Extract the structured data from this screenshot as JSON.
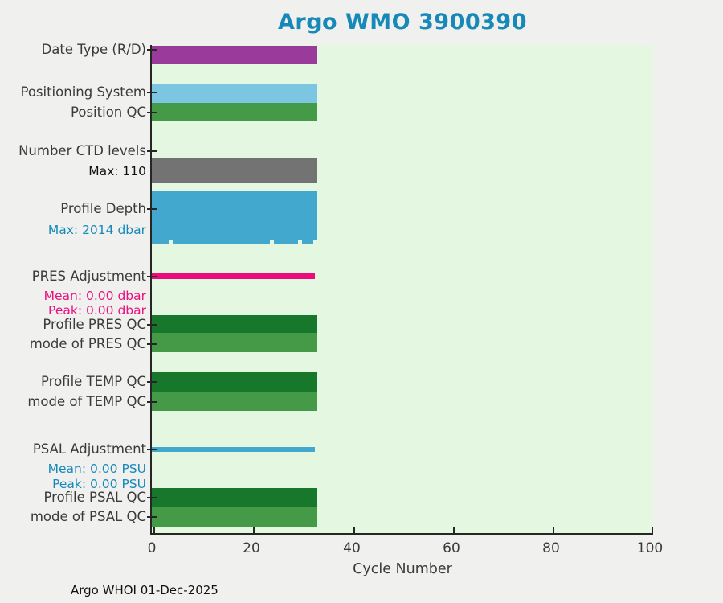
{
  "title": "Argo WMO 3900390",
  "footer": "Argo WHOI 01-Dec-2025",
  "colors": {
    "title_teal": "#1689b9",
    "page_bg": "#f0f0ee",
    "plot_bg": "#e4f8e1",
    "axis": "#262626",
    "label_text": "#3b3b3b",
    "blue_text": "#1689b9",
    "magenta_text": "#ea1280",
    "purple_bar": "#9a3a9a",
    "sky_bar": "#7dc6e2",
    "green_bar": "#459a48",
    "dark_green_bar": "#17772b",
    "gray_bar": "#737373",
    "steel_blue_bar": "#42a8ce",
    "magenta_bar": "#eb0b7a"
  },
  "xaxis": {
    "label": "Cycle Number",
    "ticks": [
      "0",
      "20",
      "40",
      "60",
      "80",
      "100"
    ]
  },
  "rows": [
    {
      "label": "Date Type (R/D)",
      "color": "#9a3a9a",
      "width_pct": 33
    },
    {
      "label": "Positioning System",
      "color": "#7dc6e2",
      "width_pct": 33
    },
    {
      "label": "Position QC",
      "color": "#459a48",
      "width_pct": 33
    },
    {
      "label": "Number CTD levels",
      "note": "Max: 110",
      "color": "#737373",
      "width_pct": 33
    },
    {
      "label": "Profile Depth",
      "note": "Max: 2014 dbar",
      "color": "#42a8ce",
      "width_pct": 33
    },
    {
      "label": "PRES Adjustment",
      "note": "Mean: 0.00 dbar",
      "note2": "Peak: 0.00 dbar",
      "color": "#eb0b7a",
      "width_pct": 32.5
    },
    {
      "label": "Profile PRES QC",
      "color": "#17772b",
      "width_pct": 33
    },
    {
      "label": "mode of PRES QC",
      "color": "#459a48",
      "width_pct": 33
    },
    {
      "label": "Profile TEMP QC",
      "color": "#17772b",
      "width_pct": 33
    },
    {
      "label": "mode of TEMP QC",
      "color": "#459a48",
      "width_pct": 33
    },
    {
      "label": "PSAL Adjustment",
      "note": "Mean: 0.00 PSU",
      "note2": "Peak: 0.00 PSU",
      "color": "#42a8ce",
      "width_pct": 32.5
    },
    {
      "label": "Profile PSAL QC",
      "color": "#17772b",
      "width_pct": 33
    },
    {
      "label": "mode of PSAL QC",
      "color": "#459a48",
      "width_pct": 33
    }
  ],
  "depth_notches_pct": [
    10,
    71.5,
    88.5,
    97.5
  ],
  "chart_data": {
    "type": "bar",
    "orientation": "horizontal",
    "title": "Argo WMO 3900390",
    "xlabel": "Cycle Number",
    "xlim": [
      0,
      100
    ],
    "xticks": [
      0,
      20,
      40,
      60,
      80,
      100
    ],
    "grid": false,
    "legend": false,
    "categories": [
      "Date Type (R/D)",
      "Positioning System",
      "Position QC",
      "Number CTD levels",
      "Profile Depth",
      "PRES Adjustment",
      "Profile PRES QC",
      "mode of PRES QC",
      "Profile TEMP QC",
      "mode of TEMP QC",
      "PSAL Adjustment",
      "Profile PSAL QC",
      "mode of PSAL QC"
    ],
    "values": [
      33,
      33,
      33,
      33,
      33,
      32.5,
      33,
      33,
      33,
      33,
      32.5,
      33,
      33
    ],
    "annotations": [
      {
        "category": "Number CTD levels",
        "text": "Max: 110"
      },
      {
        "category": "Profile Depth",
        "text": "Max: 2014 dbar"
      },
      {
        "category": "PRES Adjustment",
        "text": "Mean: 0.00 dbar"
      },
      {
        "category": "PRES Adjustment",
        "text": "Peak: 0.00 dbar"
      },
      {
        "category": "PSAL Adjustment",
        "text": "Mean: 0.00 PSU"
      },
      {
        "category": "PSAL Adjustment",
        "text": "Peak: 0.00 PSU"
      }
    ],
    "footer": "Argo WHOI 01-Dec-2025"
  }
}
